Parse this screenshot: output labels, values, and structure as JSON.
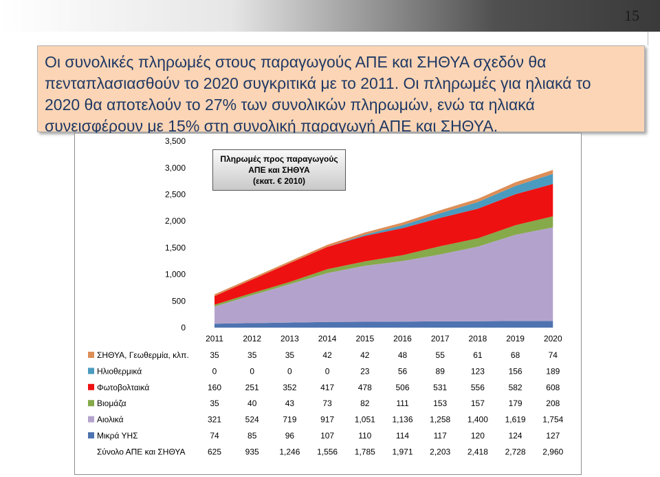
{
  "slide": {
    "page_number": "15",
    "callout_lines": [
      "Οι συνολικές πληρωμές στους παραγωγούς ΑΠΕ και ΣΗΘΥΑ σχεδόν θα",
      "πενταπλασιασθούν το 2020 συγκριτικά με το 2011. Οι πληρωμές για ηλιακά το",
      "2020 θα αποτελούν το 27% των συνολικών πληρωμών, ενώ τα ηλιακά",
      "συνεισφέρουν με 15% στη συνολική παραγωγή ΑΠΕ και ΣΗΘΥΑ."
    ]
  },
  "chart_data": {
    "type": "area",
    "stacked": true,
    "title_lines": [
      "Πληρωμές προς παραγωγούς",
      "ΑΠΕ και ΣΗΘΥΑ",
      "(εκατ. € 2010)"
    ],
    "categories": [
      "2011",
      "2012",
      "2013",
      "2014",
      "2015",
      "2016",
      "2017",
      "2018",
      "2019",
      "2020"
    ],
    "ylim": [
      0,
      3500
    ],
    "yticks": [
      "0",
      "500",
      "1,000",
      "1,500",
      "2,000",
      "2,500",
      "3,000",
      "3,500"
    ],
    "ytick_values": [
      0,
      500,
      1000,
      1500,
      2000,
      2500,
      3000,
      3500
    ],
    "series": [
      {
        "name": "ΣΗΘΥΑ, Γεωθερμία, κλπ.",
        "color": "#dc8e57",
        "values": [
          35,
          35,
          35,
          42,
          42,
          48,
          55,
          61,
          68,
          74
        ],
        "labels": [
          "35",
          "35",
          "35",
          "42",
          "42",
          "48",
          "55",
          "61",
          "68",
          "74"
        ]
      },
      {
        "name": "Ηλιοθερμικά",
        "color": "#4a9bbf",
        "values": [
          0,
          0,
          0,
          0,
          23,
          56,
          89,
          123,
          156,
          189
        ],
        "labels": [
          "0",
          "0",
          "0",
          "0",
          "23",
          "56",
          "89",
          "123",
          "156",
          "189"
        ]
      },
      {
        "name": "Φωτοβολταικά",
        "color": "#ee1111",
        "values": [
          160,
          251,
          352,
          417,
          478,
          506,
          531,
          556,
          582,
          608
        ],
        "labels": [
          "160",
          "251",
          "352",
          "417",
          "478",
          "506",
          "531",
          "556",
          "582",
          "608"
        ]
      },
      {
        "name": "Βιομάζα",
        "color": "#86a94a",
        "values": [
          35,
          40,
          43,
          73,
          82,
          111,
          153,
          157,
          179,
          208
        ],
        "labels": [
          "35",
          "40",
          "43",
          "73",
          "82",
          "111",
          "153",
          "157",
          "179",
          "208"
        ]
      },
      {
        "name": "Αιολικά",
        "color": "#b3a3cc",
        "values": [
          321,
          524,
          719,
          917,
          1051,
          1136,
          1258,
          1400,
          1619,
          1754
        ],
        "labels": [
          "321",
          "524",
          "719",
          "917",
          "1,051",
          "1,136",
          "1,258",
          "1,400",
          "1,619",
          "1,754"
        ]
      },
      {
        "name": "Μικρά ΥΗΣ",
        "color": "#4e73b0",
        "values": [
          74,
          85,
          96,
          107,
          110,
          114,
          117,
          120,
          124,
          127
        ],
        "labels": [
          "74",
          "85",
          "96",
          "107",
          "110",
          "114",
          "117",
          "120",
          "124",
          "127"
        ]
      }
    ],
    "total_row": {
      "name": "Σύνολο ΑΠΕ και ΣΗΘΥΑ",
      "values": [
        625,
        935,
        1246,
        1556,
        1785,
        1971,
        2203,
        2418,
        2728,
        2960
      ],
      "labels": [
        "625",
        "935",
        "1,246",
        "1,556",
        "1,785",
        "1,971",
        "2,203",
        "2,418",
        "2,728",
        "2,960"
      ]
    },
    "legend_placement": "data-table-left",
    "grid": false
  }
}
